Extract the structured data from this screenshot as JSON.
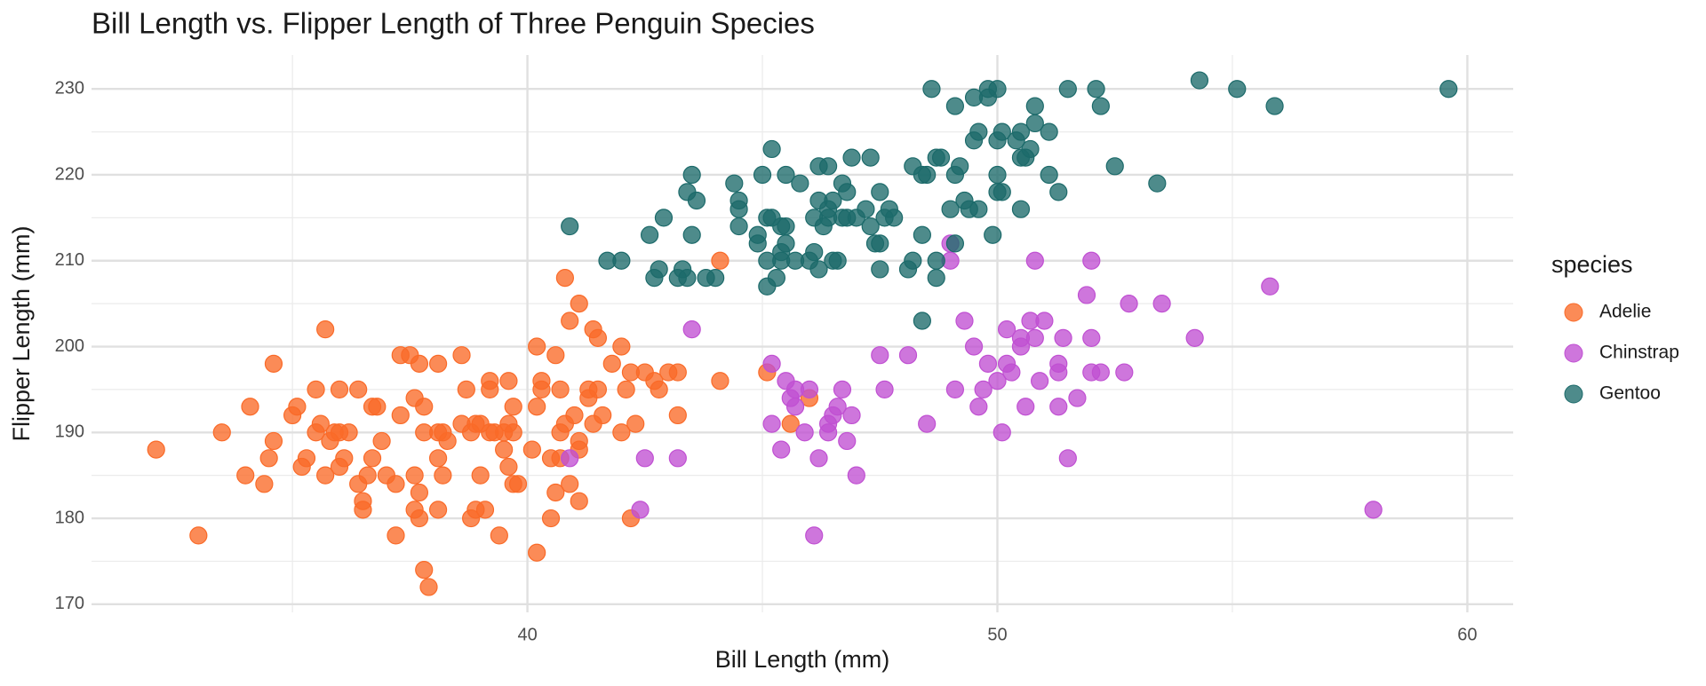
{
  "chart_data": {
    "type": "scatter",
    "title": "Bill Length vs. Flipper Length of Three Penguin Species",
    "x_label": "Bill Length (mm)",
    "y_label": "Flipper Length (mm)",
    "legend_title": "species",
    "legend_position": "right",
    "grid": true,
    "xlim": [
      30.725,
      60.975
    ],
    "ylim": [
      169.05,
      233.95
    ],
    "xticks": [
      40,
      50,
      60
    ],
    "yticks": [
      170,
      180,
      190,
      200,
      210,
      220,
      230
    ],
    "xminor": [
      35,
      45,
      55
    ],
    "yminor": [
      175,
      185,
      195,
      205,
      215,
      225
    ],
    "series": [
      {
        "name": "Adelie",
        "color": "#FA6A28",
        "x": [
          32.1,
          33.0,
          33.5,
          34.0,
          34.1,
          34.4,
          34.5,
          34.6,
          34.6,
          35.0,
          35.1,
          35.2,
          35.3,
          35.5,
          35.5,
          35.6,
          35.7,
          35.7,
          35.8,
          35.9,
          36.0,
          36.0,
          36.0,
          36.1,
          36.2,
          36.4,
          36.4,
          36.5,
          36.5,
          36.6,
          36.7,
          36.7,
          36.8,
          36.9,
          37.0,
          37.2,
          37.2,
          37.3,
          37.3,
          37.5,
          37.6,
          37.6,
          37.6,
          37.7,
          37.7,
          37.7,
          37.8,
          37.8,
          37.8,
          37.9,
          38.1,
          38.1,
          38.1,
          38.1,
          38.2,
          38.2,
          38.3,
          38.6,
          38.6,
          38.7,
          38.8,
          38.8,
          38.9,
          38.9,
          39.0,
          39.0,
          39.1,
          39.2,
          39.2,
          39.2,
          39.3,
          39.4,
          39.5,
          39.5,
          39.6,
          39.6,
          39.6,
          39.7,
          39.7,
          39.7,
          39.8,
          40.1,
          40.2,
          40.2,
          40.2,
          40.3,
          40.3,
          40.5,
          40.5,
          40.6,
          40.6,
          40.7,
          40.7,
          40.7,
          40.8,
          40.8,
          40.9,
          40.9,
          41.0,
          41.1,
          41.1,
          41.1,
          41.1,
          41.3,
          41.3,
          41.4,
          41.4,
          41.5,
          41.5,
          41.6,
          41.8,
          42.0,
          42.0,
          42.1,
          42.2,
          42.2,
          42.3,
          42.5,
          42.7,
          42.8,
          43.0,
          43.2,
          43.2,
          44.1,
          44.1,
          45.1,
          45.6,
          46.0
        ],
        "values": [
          188,
          178,
          190,
          185,
          193,
          184,
          187,
          198,
          189,
          192,
          193,
          186,
          187,
          195,
          190,
          191,
          202,
          185,
          189,
          190,
          195,
          186,
          190,
          187,
          190,
          195,
          184,
          182,
          181,
          185,
          193,
          187,
          193,
          189,
          185,
          184,
          178,
          199,
          192,
          199,
          194,
          185,
          181,
          198,
          183,
          180,
          190,
          193,
          174,
          172,
          198,
          187,
          190,
          181,
          185,
          190,
          189,
          199,
          191,
          195,
          190,
          180,
          191,
          181,
          185,
          191,
          181,
          196,
          190,
          195,
          190,
          178,
          188,
          190,
          196,
          186,
          191,
          193,
          184,
          190,
          184,
          188,
          200,
          176,
          193,
          196,
          195,
          180,
          187,
          183,
          199,
          187,
          190,
          195,
          208,
          191,
          184,
          203,
          192,
          205,
          182,
          189,
          188,
          194,
          195,
          191,
          202,
          201,
          195,
          192,
          198,
          200,
          190,
          195,
          180,
          197,
          191,
          197,
          196,
          195,
          197,
          197,
          192,
          210,
          196,
          197,
          191,
          194
        ]
      },
      {
        "name": "Chinstrap",
        "color": "#C050D2",
        "x": [
          40.9,
          42.4,
          42.5,
          43.2,
          43.5,
          45.2,
          45.2,
          45.4,
          45.5,
          45.6,
          45.7,
          45.7,
          45.9,
          46.0,
          46.1,
          46.2,
          46.4,
          46.4,
          46.5,
          46.6,
          46.7,
          46.8,
          46.9,
          47.0,
          47.5,
          47.6,
          48.1,
          48.5,
          49.0,
          49.0,
          49.1,
          49.3,
          49.5,
          49.6,
          49.7,
          49.8,
          50.0,
          50.1,
          50.2,
          50.2,
          50.3,
          50.5,
          50.5,
          50.6,
          50.7,
          50.8,
          50.8,
          50.9,
          51.0,
          51.3,
          51.3,
          51.3,
          51.4,
          51.5,
          51.7,
          51.9,
          52.0,
          52.0,
          52.0,
          52.2,
          52.7,
          52.8,
          53.5,
          54.2,
          55.8,
          58.0
        ],
        "values": [
          187,
          181,
          187,
          187,
          202,
          198,
          191,
          188,
          196,
          194,
          195,
          193,
          190,
          195,
          178,
          187,
          191,
          190,
          192,
          193,
          195,
          189,
          192,
          185,
          199,
          195,
          199,
          191,
          210,
          212,
          195,
          203,
          200,
          193,
          195,
          198,
          196,
          190,
          202,
          198,
          197,
          200,
          201,
          193,
          203,
          210,
          201,
          196,
          203,
          198,
          193,
          197,
          201,
          187,
          194,
          206,
          210,
          201,
          197,
          197,
          197,
          205,
          205,
          201,
          207,
          181
        ]
      },
      {
        "name": "Gentoo",
        "color": "#1C6A6A",
        "x": [
          40.9,
          41.7,
          42.0,
          42.6,
          42.7,
          42.8,
          42.9,
          43.2,
          43.3,
          43.4,
          43.4,
          43.5,
          43.5,
          43.6,
          43.8,
          44.0,
          44.4,
          44.5,
          44.5,
          44.5,
          44.9,
          44.9,
          45.0,
          45.1,
          45.1,
          45.1,
          45.2,
          45.2,
          45.3,
          45.4,
          45.4,
          45.4,
          45.5,
          45.5,
          45.5,
          45.7,
          45.8,
          46.0,
          46.1,
          46.1,
          46.2,
          46.2,
          46.2,
          46.3,
          46.4,
          46.4,
          46.4,
          46.5,
          46.5,
          46.6,
          46.7,
          46.7,
          46.8,
          46.8,
          46.9,
          47.0,
          47.2,
          47.3,
          47.3,
          47.4,
          47.5,
          47.5,
          47.5,
          47.6,
          47.7,
          47.8,
          48.1,
          48.2,
          48.2,
          48.4,
          48.4,
          48.4,
          48.5,
          48.6,
          48.7,
          48.7,
          48.7,
          48.8,
          49.0,
          49.1,
          49.1,
          49.1,
          49.2,
          49.3,
          49.4,
          49.5,
          49.5,
          49.6,
          49.6,
          49.8,
          49.8,
          49.9,
          50.0,
          50.0,
          50.0,
          50.0,
          50.1,
          50.1,
          50.4,
          50.5,
          50.5,
          50.5,
          50.6,
          50.7,
          50.8,
          50.8,
          51.1,
          51.1,
          51.3,
          51.5,
          52.1,
          52.2,
          52.5,
          53.4,
          54.3,
          55.1,
          55.9,
          59.6
        ],
        "values": [
          214,
          210,
          210,
          213,
          208,
          209,
          215,
          208,
          209,
          208,
          218,
          220,
          213,
          217,
          208,
          208,
          219,
          217,
          216,
          214,
          213,
          212,
          220,
          215,
          207,
          210,
          223,
          215,
          208,
          211,
          214,
          210,
          212,
          220,
          214,
          210,
          219,
          210,
          215,
          211,
          221,
          209,
          217,
          214,
          221,
          215,
          216,
          217,
          210,
          210,
          219,
          215,
          215,
          218,
          222,
          215,
          216,
          222,
          214,
          212,
          209,
          212,
          218,
          215,
          216,
          215,
          209,
          210,
          221,
          213,
          220,
          203,
          220,
          230,
          222,
          210,
          208,
          222,
          216,
          212,
          228,
          220,
          221,
          217,
          216,
          224,
          229,
          225,
          216,
          229,
          230,
          213,
          230,
          224,
          220,
          218,
          225,
          218,
          224,
          222,
          225,
          216,
          222,
          223,
          228,
          226,
          225,
          220,
          218,
          230,
          230,
          228,
          221,
          219,
          231,
          230,
          228,
          230
        ]
      }
    ]
  }
}
